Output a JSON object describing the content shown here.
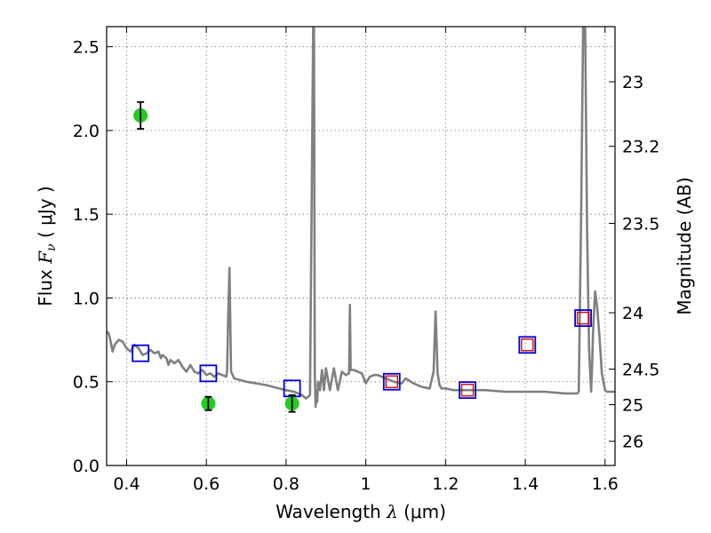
{
  "chart_data": {
    "type": "scatter",
    "xlabel_prefix": "Wavelength  ",
    "xlabel_symbol": "λ",
    "xlabel_unit": " (μm)",
    "ylabel_prefix": "Flux  ",
    "ylabel_symbol": "F",
    "ylabel_subscript": "ν",
    "ylabel_unit": "  ( μJy )",
    "y2label": "Magnitude (AB)",
    "xlim": [
      0.35,
      1.625
    ],
    "ylim": [
      0.0,
      2.62
    ],
    "grid": true,
    "x_ticks": [
      {
        "value": 0.4,
        "label": "0.4"
      },
      {
        "value": 0.6,
        "label": "0.6"
      },
      {
        "value": 0.8,
        "label": "0.8"
      },
      {
        "value": 1.0,
        "label": "1"
      },
      {
        "value": 1.2,
        "label": "1.2"
      },
      {
        "value": 1.4,
        "label": "1.4"
      },
      {
        "value": 1.6,
        "label": "1.6"
      }
    ],
    "y_ticks": [
      {
        "value": 0.0,
        "label": "0.0"
      },
      {
        "value": 0.5,
        "label": "0.5"
      },
      {
        "value": 1.0,
        "label": "1.0"
      },
      {
        "value": 1.5,
        "label": "1.5"
      },
      {
        "value": 2.0,
        "label": "2.0"
      },
      {
        "value": 2.5,
        "label": "2.5"
      }
    ],
    "y2_ticks": [
      {
        "value": 23,
        "label": "23"
      },
      {
        "value": 23.2,
        "label": "23.2"
      },
      {
        "value": 23.5,
        "label": "23.5"
      },
      {
        "value": 24,
        "label": "24"
      },
      {
        "value": 24.5,
        "label": "24.5"
      },
      {
        "value": 25,
        "label": "25"
      },
      {
        "value": 26,
        "label": "26"
      }
    ],
    "series": [
      {
        "kind": "line",
        "color": "#808080",
        "x": [
          0.35,
          0.355,
          0.36,
          0.365,
          0.37,
          0.38,
          0.39,
          0.4,
          0.41,
          0.42,
          0.43,
          0.44,
          0.45,
          0.46,
          0.47,
          0.48,
          0.486,
          0.49,
          0.5,
          0.505,
          0.51,
          0.52,
          0.53,
          0.54,
          0.55,
          0.56,
          0.57,
          0.58,
          0.59,
          0.6,
          0.61,
          0.62,
          0.63,
          0.64,
          0.65,
          0.652,
          0.655,
          0.658,
          0.662,
          0.67,
          0.7,
          0.75,
          0.8,
          0.82,
          0.84,
          0.85,
          0.86,
          0.868,
          0.87,
          0.872,
          0.874,
          0.876,
          0.878,
          0.88,
          0.885,
          0.89,
          0.895,
          0.9,
          0.91,
          0.92,
          0.93,
          0.94,
          0.95,
          0.958,
          0.96,
          0.962,
          0.965,
          0.97,
          0.98,
          0.99,
          1.0,
          1.01,
          1.02,
          1.03,
          1.05,
          1.07,
          1.09,
          1.1,
          1.12,
          1.14,
          1.16,
          1.17,
          1.175,
          1.18,
          1.185,
          1.19,
          1.2,
          1.22,
          1.24,
          1.26,
          1.3,
          1.35,
          1.4,
          1.45,
          1.5,
          1.53,
          1.534,
          1.54,
          1.545,
          1.55,
          1.555,
          1.56,
          1.565,
          1.568,
          1.57,
          1.575,
          1.58,
          1.585,
          1.588,
          1.592,
          1.6,
          1.605,
          1.61,
          1.625
        ],
        "y": [
          0.8,
          0.79,
          0.74,
          0.68,
          0.72,
          0.75,
          0.74,
          0.7,
          0.68,
          0.72,
          0.7,
          0.66,
          0.67,
          0.69,
          0.67,
          0.68,
          0.64,
          0.66,
          0.64,
          0.6,
          0.63,
          0.61,
          0.63,
          0.59,
          0.56,
          0.6,
          0.56,
          0.55,
          0.57,
          0.54,
          0.55,
          0.53,
          0.55,
          0.54,
          0.53,
          0.56,
          0.9,
          1.18,
          0.56,
          0.52,
          0.5,
          0.48,
          0.45,
          0.44,
          0.42,
          0.4,
          0.42,
          2.62,
          2.62,
          0.55,
          0.35,
          0.44,
          0.38,
          0.5,
          0.45,
          0.57,
          0.45,
          0.58,
          0.45,
          0.58,
          0.45,
          0.56,
          0.54,
          0.55,
          0.96,
          0.57,
          0.57,
          0.57,
          0.56,
          0.55,
          0.49,
          0.53,
          0.54,
          0.54,
          0.52,
          0.5,
          0.49,
          0.52,
          0.49,
          0.47,
          0.46,
          0.56,
          0.92,
          0.55,
          0.48,
          0.46,
          0.46,
          0.45,
          0.45,
          0.45,
          0.45,
          0.44,
          0.44,
          0.44,
          0.43,
          0.43,
          0.44,
          1.5,
          2.62,
          2.62,
          1.4,
          0.7,
          0.44,
          0.62,
          0.8,
          1.04,
          0.95,
          0.8,
          0.7,
          0.55,
          0.45,
          0.44,
          0.44,
          0.44
        ]
      },
      {
        "kind": "markers",
        "marker": "open-square",
        "color": "#0000dd",
        "x": [
          0.435,
          0.605,
          0.815,
          1.065,
          1.255,
          1.405,
          1.545
        ],
        "y": [
          0.67,
          0.55,
          0.46,
          0.5,
          0.45,
          0.72,
          0.88
        ]
      },
      {
        "kind": "markers",
        "marker": "open-square-small",
        "color": "#e00000",
        "x": [
          1.065,
          1.255,
          1.405,
          1.545
        ],
        "y": [
          0.5,
          0.45,
          0.72,
          0.88
        ]
      },
      {
        "kind": "errorbar",
        "marker": "filled-circle",
        "color": "#22cc22",
        "ecolor": "#000000",
        "x": [
          0.435,
          0.605,
          0.815
        ],
        "y": [
          2.09,
          0.37,
          0.37
        ],
        "yerr": [
          0.08,
          0.04,
          0.05
        ]
      }
    ]
  }
}
